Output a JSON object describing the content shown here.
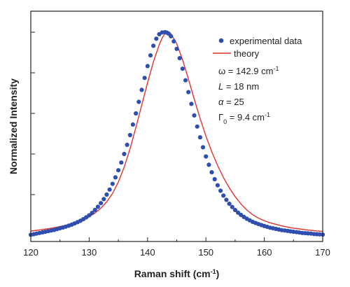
{
  "chart_data": {
    "type": "line",
    "xlabel_main": "Raman shift (cm",
    "xlabel_sup": "-1",
    "xlabel_end": ")",
    "ylabel": "Normalized Intensity",
    "xlim": [
      120,
      170
    ],
    "ylim": [
      0,
      1.0
    ],
    "x_ticks": [
      120,
      130,
      140,
      150,
      160,
      170
    ],
    "x_tick_labels": [
      "120",
      "130",
      "140",
      "150",
      "160",
      "170"
    ],
    "y_tick_values": [
      0.2,
      0.4,
      0.6,
      0.8,
      1.0
    ],
    "y_tick_labels_visible": false,
    "legend": {
      "position": "top-right",
      "entries": [
        {
          "label": "experimental data",
          "marker": "dot",
          "color": "#2f4fb0"
        },
        {
          "label": "theory",
          "marker": "line",
          "color": "#e0332d"
        }
      ]
    },
    "annotations": [
      {
        "sym": "ω",
        "italic": false,
        "text": " = 142.9 cm",
        "sup": "-1"
      },
      {
        "sym": "L",
        "italic": true,
        "text": " = 18 nm",
        "sup": ""
      },
      {
        "sym": "α",
        "italic": true,
        "text": " = 25",
        "sup": ""
      },
      {
        "sym": "Γ",
        "italic": false,
        "sub": "0",
        "text": " = 9.4 cm",
        "sup": "-1"
      }
    ],
    "series": [
      {
        "name": "experimental data",
        "style": "markers",
        "color": "#2f4fb0",
        "x": [
          120.0,
          120.5,
          121.0,
          121.5,
          122.0,
          122.5,
          123.0,
          123.5,
          124.0,
          124.5,
          125.0,
          125.5,
          126.0,
          126.5,
          127.0,
          127.5,
          128.0,
          128.5,
          129.0,
          129.5,
          130.0,
          130.5,
          131.0,
          131.5,
          132.0,
          132.5,
          133.0,
          133.5,
          134.0,
          134.5,
          135.0,
          135.5,
          136.0,
          136.5,
          137.0,
          137.5,
          138.0,
          138.5,
          139.0,
          139.5,
          140.0,
          140.5,
          141.0,
          141.5,
          142.0,
          142.5,
          143.0,
          143.3,
          143.6,
          144.0,
          144.5,
          145.0,
          145.5,
          146.0,
          146.5,
          147.0,
          147.5,
          148.0,
          148.5,
          149.0,
          149.5,
          150.0,
          150.5,
          151.0,
          151.5,
          152.0,
          152.5,
          153.0,
          153.5,
          154.0,
          154.5,
          155.0,
          155.5,
          156.0,
          156.5,
          157.0,
          157.5,
          158.0,
          158.5,
          159.0,
          159.5,
          160.0,
          160.5,
          161.0,
          161.5,
          162.0,
          162.5,
          163.0,
          163.5,
          164.0,
          164.5,
          165.0,
          165.5,
          166.0,
          166.5,
          167.0,
          167.5,
          168.0,
          168.5,
          169.0,
          169.5,
          170.0
        ],
        "y": [
          0.002,
          0.005,
          0.008,
          0.011,
          0.014,
          0.017,
          0.02,
          0.023,
          0.026,
          0.03,
          0.034,
          0.038,
          0.042,
          0.047,
          0.052,
          0.058,
          0.064,
          0.071,
          0.079,
          0.088,
          0.098,
          0.11,
          0.124,
          0.14,
          0.158,
          0.178,
          0.2,
          0.225,
          0.253,
          0.285,
          0.32,
          0.358,
          0.4,
          0.445,
          0.493,
          0.545,
          0.6,
          0.657,
          0.716,
          0.775,
          0.833,
          0.886,
          0.933,
          0.968,
          0.99,
          0.999,
          1.0,
          0.998,
          0.993,
          0.98,
          0.955,
          0.918,
          0.872,
          0.82,
          0.763,
          0.705,
          0.647,
          0.59,
          0.535,
          0.482,
          0.433,
          0.388,
          0.347,
          0.31,
          0.276,
          0.246,
          0.219,
          0.195,
          0.174,
          0.155,
          0.139,
          0.124,
          0.111,
          0.1,
          0.09,
          0.081,
          0.073,
          0.066,
          0.06,
          0.055,
          0.05,
          0.045,
          0.041,
          0.037,
          0.034,
          0.031,
          0.028,
          0.025,
          0.023,
          0.021,
          0.019,
          0.017,
          0.015,
          0.013,
          0.011,
          0.01,
          0.009,
          0.008,
          0.006,
          0.005,
          0.004,
          0.003
        ]
      },
      {
        "name": "theory",
        "style": "line",
        "color": "#e0332d",
        "x": [
          120,
          121,
          122,
          123,
          124,
          125,
          126,
          127,
          128,
          129,
          130,
          131,
          132,
          133,
          134,
          135,
          136,
          137,
          138,
          139,
          140,
          141,
          142,
          142.5,
          143,
          143.5,
          144,
          145,
          146,
          147,
          148,
          149,
          150,
          151,
          152,
          153,
          154,
          155,
          156,
          157,
          158,
          159,
          160,
          161,
          162,
          163,
          164,
          165,
          166,
          167,
          168,
          169,
          170
        ],
        "y": [
          0.02,
          0.024,
          0.028,
          0.032,
          0.037,
          0.043,
          0.049,
          0.057,
          0.066,
          0.077,
          0.091,
          0.109,
          0.133,
          0.164,
          0.206,
          0.262,
          0.335,
          0.426,
          0.53,
          0.641,
          0.751,
          0.853,
          0.939,
          0.972,
          0.994,
          1.0,
          0.992,
          0.943,
          0.864,
          0.769,
          0.67,
          0.575,
          0.488,
          0.411,
          0.343,
          0.284,
          0.233,
          0.19,
          0.154,
          0.124,
          0.101,
          0.084,
          0.071,
          0.061,
          0.053,
          0.046,
          0.04,
          0.035,
          0.031,
          0.027,
          0.024,
          0.021,
          0.019
        ]
      }
    ]
  }
}
